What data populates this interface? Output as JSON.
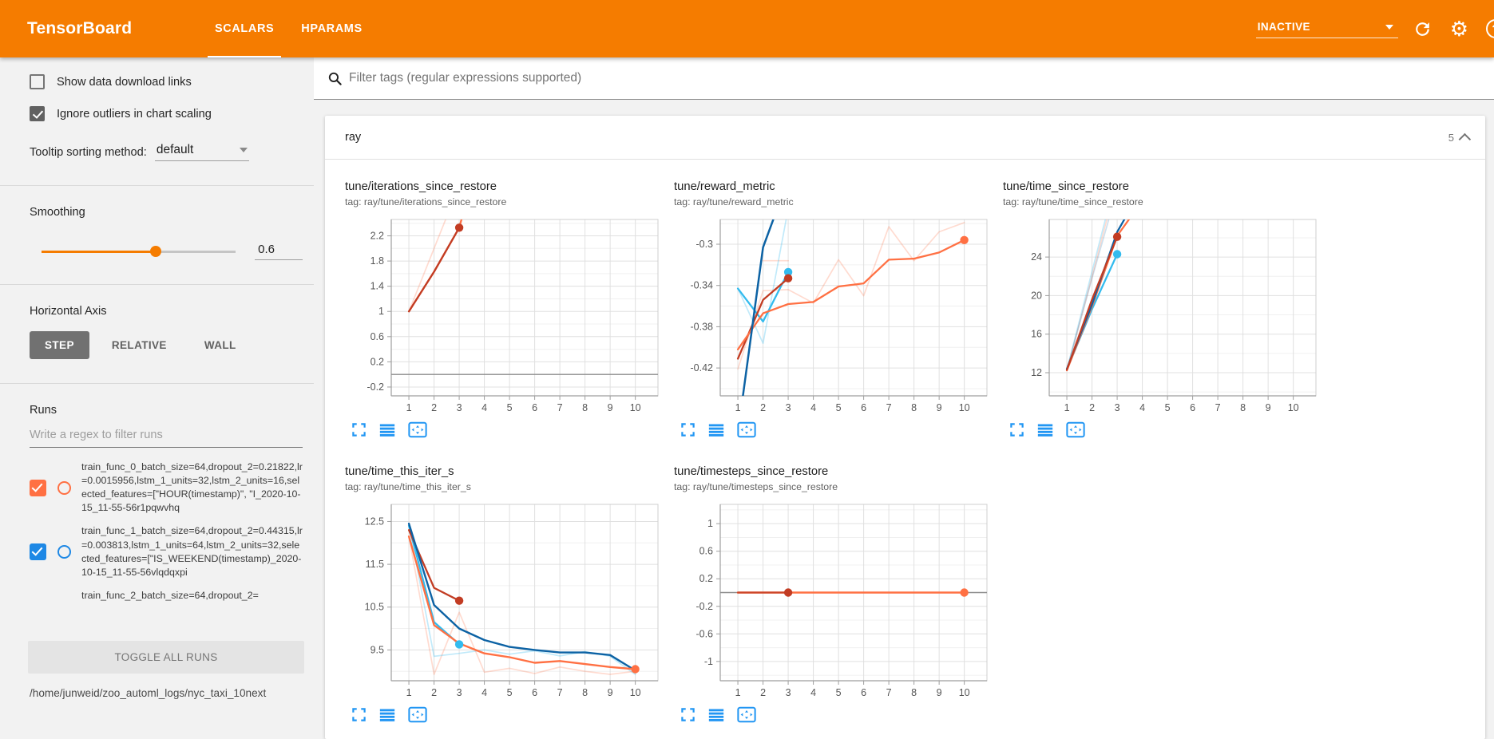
{
  "header": {
    "app_title": "TensorBoard",
    "tabs": [
      {
        "label": "SCALARS"
      },
      {
        "label": "HPARAMS"
      }
    ],
    "active_tab": "SCALARS",
    "status_dropdown": "INACTIVE",
    "help_glyph": "?",
    "bg_color": "#f57c00"
  },
  "sidebar": {
    "show_download": {
      "label": "Show data download links",
      "checked": false
    },
    "ignore_outliers": {
      "label": "Ignore outliers in chart scaling",
      "checked": true
    },
    "tooltip_sorting": {
      "label": "Tooltip sorting method:",
      "value": "default"
    },
    "smoothing": {
      "label": "Smoothing",
      "value": "0.6",
      "percent": 59
    },
    "horizontal_axis": {
      "label": "Horizontal Axis",
      "options": [
        "STEP",
        "RELATIVE",
        "WALL"
      ],
      "active": "STEP"
    },
    "runs": {
      "label": "Runs",
      "filter_placeholder": "Write a regex to filter runs",
      "items": [
        {
          "color": "#ff7043",
          "checked": true,
          "partial": false,
          "name": "train_func_0_batch_size=64,dropout_2=0.21822,lr=0.0015956,lstm_1_units=32,lstm_2_units=16,selected_features=[\"HOUR(timestamp)\", \"I_2020-10-15_11-55-56r1pqwvhq"
        },
        {
          "color": "#1e88e5",
          "checked": true,
          "partial": false,
          "name": "train_func_1_batch_size=64,dropout_2=0.44315,lr=0.003813,lstm_1_units=64,lstm_2_units=32,selected_features=[\"IS_WEEKEND(timestamp)_2020-10-15_11-55-56vlqdqxpi"
        },
        {
          "color": "#9e9e9e",
          "checked": false,
          "partial": true,
          "name": "train_func_2_batch_size=64,dropout_2="
        }
      ],
      "toggle_all": "TOGGLE ALL RUNS",
      "log_dir": "/home/junweid/zoo_automl_logs/nyc_taxi_10next"
    }
  },
  "main": {
    "tag_filter_placeholder": "Filter tags (regular expressions supported)",
    "group": {
      "name": "ray",
      "count": "5"
    }
  },
  "chart_data": [
    {
      "type": "line",
      "title": "tune/iterations_since_restore",
      "tag": "tag: ray/tune/iterations_since_restore",
      "xlim": [
        0.3,
        10.9
      ],
      "ylim": [
        -0.34,
        2.46
      ],
      "xticks": [
        1,
        2,
        3,
        4,
        5,
        6,
        7,
        8,
        9,
        10
      ],
      "yticks": [
        -0.2,
        0.2,
        0.6,
        1,
        1.4,
        1.8,
        2.2
      ],
      "zero_line": true,
      "series": [
        {
          "name": "run0-unsmoothed",
          "color": "#ff7043",
          "opacity": 0.25,
          "width": 1.7,
          "points": [
            [
              1,
              1
            ],
            [
              2,
              2
            ],
            [
              3,
              3
            ]
          ]
        },
        {
          "name": "run0-smoothed",
          "color": "#ff7043",
          "opacity": 1,
          "width": 2.3,
          "points": [
            [
              1,
              1
            ],
            [
              2,
              1.63
            ],
            [
              3,
              2.33
            ],
            [
              3.6,
              3.2
            ]
          ]
        },
        {
          "name": "run2-smoothed",
          "color": "#c23c23",
          "opacity": 1,
          "width": 2.3,
          "points": [
            [
              1,
              1
            ],
            [
              2,
              1.63
            ],
            [
              3,
              2.33
            ]
          ]
        }
      ],
      "dots": [
        {
          "x": 3,
          "y": 2.33,
          "color": "#c23c23"
        }
      ]
    },
    {
      "type": "line",
      "title": "tune/reward_metric",
      "tag": "tag: ray/tune/reward_metric",
      "xlim": [
        0.3,
        10.9
      ],
      "ylim": [
        -0.447,
        -0.276
      ],
      "xticks": [
        1,
        2,
        3,
        4,
        5,
        6,
        7,
        8,
        9,
        10
      ],
      "yticks": [
        -0.42,
        -0.38,
        -0.34,
        -0.3
      ],
      "zero_line": false,
      "series": [
        {
          "name": "run0-unsmoothed",
          "color": "#ff7043",
          "opacity": 0.25,
          "width": 1.7,
          "points": [
            [
              1,
              -0.421
            ],
            [
              2,
              -0.345
            ],
            [
              3,
              -0.344
            ],
            [
              4,
              -0.357
            ],
            [
              5,
              -0.315
            ],
            [
              6,
              -0.35
            ],
            [
              7,
              -0.283
            ],
            [
              8,
              -0.316
            ],
            [
              9,
              -0.288
            ],
            [
              10,
              -0.279
            ]
          ]
        },
        {
          "name": "run0-unsmoothed-b",
          "color": "#ff7043",
          "opacity": 0.25,
          "width": 1.7,
          "points": [
            [
              2,
              -0.316
            ],
            [
              3,
              -0.316
            ]
          ]
        },
        {
          "name": "run3-unsmoothed",
          "color": "#33bbee",
          "opacity": 0.3,
          "width": 1.7,
          "points": [
            [
              1,
              -0.343
            ],
            [
              2,
              -0.396
            ],
            [
              2.95,
              -0.272
            ]
          ]
        },
        {
          "name": "run3-smoothed",
          "color": "#33bbee",
          "opacity": 1,
          "width": 2.3,
          "points": [
            [
              1,
              -0.343
            ],
            [
              2,
              -0.375
            ],
            [
              3,
              -0.327
            ]
          ]
        },
        {
          "name": "run2-smoothed",
          "color": "#c23c23",
          "opacity": 1,
          "width": 2.3,
          "points": [
            [
              1,
              -0.411
            ],
            [
              2,
              -0.354
            ],
            [
              3,
              -0.333
            ]
          ]
        },
        {
          "name": "run0-smoothed",
          "color": "#ff7043",
          "opacity": 1,
          "width": 2.3,
          "points": [
            [
              1,
              -0.402
            ],
            [
              2,
              -0.367
            ],
            [
              3,
              -0.358
            ],
            [
              4,
              -0.356
            ],
            [
              5,
              -0.341
            ],
            [
              6,
              -0.338
            ],
            [
              7,
              -0.315
            ],
            [
              8,
              -0.314
            ],
            [
              9,
              -0.308
            ],
            [
              10,
              -0.296
            ]
          ]
        },
        {
          "name": "run1-smoothed",
          "color": "#0c62a4",
          "opacity": 1,
          "width": 2.5,
          "points": [
            [
              1.2,
              -0.447
            ],
            [
              2,
              -0.303
            ],
            [
              2.5,
              -0.27
            ]
          ]
        }
      ],
      "dots": [
        {
          "x": 3,
          "y": -0.327,
          "color": "#33bbee"
        },
        {
          "x": 3,
          "y": -0.333,
          "color": "#c23c23"
        },
        {
          "x": 10,
          "y": -0.296,
          "color": "#ff7043"
        }
      ]
    },
    {
      "type": "line",
      "title": "tune/time_since_restore",
      "tag": "tag: ray/tune/time_since_restore",
      "xlim": [
        0.3,
        10.9
      ],
      "ylim": [
        9.6,
        27.9
      ],
      "xticks": [
        1,
        2,
        3,
        4,
        5,
        6,
        7,
        8,
        9,
        10
      ],
      "yticks": [
        12,
        16,
        20,
        24
      ],
      "zero_line": false,
      "series": [
        {
          "name": "run0-unsmoothed",
          "color": "#ff7043",
          "opacity": 0.25,
          "width": 1.7,
          "points": [
            [
              1,
              12.2
            ],
            [
              2,
              22.0
            ],
            [
              2.62,
              28.2
            ]
          ]
        },
        {
          "name": "run3-unsmoothed",
          "color": "#33bbee",
          "opacity": 0.3,
          "width": 1.7,
          "points": [
            [
              1,
              12.3
            ],
            [
              2,
              22.5
            ],
            [
              2.56,
              28.2
            ]
          ]
        },
        {
          "name": "run1-unsmoothed",
          "color": "#0c62a4",
          "opacity": 0.2,
          "width": 1.7,
          "points": [
            [
              1,
              12.3
            ],
            [
              2,
              21.8
            ],
            [
              2.7,
              28.2
            ]
          ]
        },
        {
          "name": "run3-smoothed",
          "color": "#33bbee",
          "opacity": 1,
          "width": 2.3,
          "points": [
            [
              1,
              12.35
            ],
            [
              2,
              18.6
            ],
            [
              3,
              24.3
            ]
          ]
        },
        {
          "name": "run0-smoothed",
          "color": "#ff7043",
          "opacity": 1,
          "width": 2.3,
          "points": [
            [
              1,
              12.25
            ],
            [
              2,
              18.9
            ],
            [
              3,
              26.2
            ],
            [
              3.55,
              28.2
            ]
          ]
        },
        {
          "name": "run1-smoothed",
          "color": "#0c62a4",
          "opacity": 1,
          "width": 2.3,
          "points": [
            [
              1,
              12.4
            ],
            [
              2,
              19.1
            ],
            [
              3,
              26.6
            ],
            [
              3.35,
              28.2
            ]
          ]
        },
        {
          "name": "run2-smoothed",
          "color": "#c23c23",
          "opacity": 1,
          "width": 2.3,
          "points": [
            [
              1,
              12.3
            ],
            [
              2,
              19.6
            ],
            [
              3,
              26.1
            ]
          ]
        }
      ],
      "dots": [
        {
          "x": 3,
          "y": 26.1,
          "color": "#c23c23"
        },
        {
          "x": 3,
          "y": 24.3,
          "color": "#33bbee"
        }
      ]
    },
    {
      "type": "line",
      "title": "tune/time_this_iter_s",
      "tag": "tag: ray/tune/time_this_iter_s",
      "xlim": [
        0.3,
        10.9
      ],
      "ylim": [
        8.78,
        12.9
      ],
      "xticks": [
        1,
        2,
        3,
        4,
        5,
        6,
        7,
        8,
        9,
        10
      ],
      "yticks": [
        9.5,
        10.5,
        11.5,
        12.5
      ],
      "zero_line": false,
      "series": [
        {
          "name": "run0-unsmoothed",
          "color": "#ff7043",
          "opacity": 0.25,
          "width": 1.7,
          "points": [
            [
              1,
              12.15
            ],
            [
              2,
              8.93
            ],
            [
              3,
              10.38
            ],
            [
              4,
              8.98
            ],
            [
              5,
              9.07
            ],
            [
              6,
              8.95
            ],
            [
              7,
              9.1
            ],
            [
              8,
              9.0
            ],
            [
              9,
              8.93
            ],
            [
              10,
              9.0
            ]
          ]
        },
        {
          "name": "run1-unsmoothed",
          "color": "#33bbee",
          "opacity": 0.3,
          "width": 1.7,
          "points": [
            [
              1,
              12.42
            ],
            [
              2,
              9.35
            ],
            [
              3,
              9.42
            ],
            [
              4,
              9.5
            ],
            [
              5,
              9.4
            ],
            [
              6,
              9.48
            ],
            [
              7,
              9.36
            ],
            [
              8,
              9.46
            ],
            [
              9,
              9.35
            ],
            [
              10,
              8.93
            ]
          ]
        },
        {
          "name": "run3-smoothed",
          "color": "#33bbee",
          "opacity": 1,
          "width": 2.3,
          "points": [
            [
              1,
              12.4
            ],
            [
              2,
              10.15
            ],
            [
              3,
              9.63
            ]
          ]
        },
        {
          "name": "run2-smoothed",
          "color": "#c23c23",
          "opacity": 1,
          "width": 2.3,
          "points": [
            [
              1,
              12.3
            ],
            [
              2,
              10.95
            ],
            [
              3,
              10.65
            ]
          ]
        },
        {
          "name": "run1-smoothed",
          "color": "#0c62a4",
          "opacity": 1,
          "width": 2.4,
          "points": [
            [
              1,
              12.45
            ],
            [
              2,
              10.55
            ],
            [
              3,
              10.0
            ],
            [
              4,
              9.73
            ],
            [
              5,
              9.57
            ],
            [
              6,
              9.5
            ],
            [
              7,
              9.44
            ],
            [
              8,
              9.44
            ],
            [
              9,
              9.38
            ],
            [
              10,
              9.02
            ]
          ]
        },
        {
          "name": "run0-smoothed",
          "color": "#ff7043",
          "opacity": 1,
          "width": 2.4,
          "points": [
            [
              1,
              12.15
            ],
            [
              2,
              10.08
            ],
            [
              3,
              9.65
            ],
            [
              4,
              9.42
            ],
            [
              5,
              9.33
            ],
            [
              6,
              9.2
            ],
            [
              7,
              9.24
            ],
            [
              8,
              9.17
            ],
            [
              9,
              9.1
            ],
            [
              10,
              9.05
            ]
          ]
        }
      ],
      "dots": [
        {
          "x": 3,
          "y": 10.65,
          "color": "#c23c23"
        },
        {
          "x": 3,
          "y": 9.63,
          "color": "#33bbee"
        },
        {
          "x": 10,
          "y": 9.05,
          "color": "#ff7043"
        }
      ]
    },
    {
      "type": "line",
      "title": "tune/timesteps_since_restore",
      "tag": "tag: ray/tune/timesteps_since_restore",
      "xlim": [
        0.3,
        10.9
      ],
      "ylim": [
        -1.28,
        1.28
      ],
      "xticks": [
        1,
        2,
        3,
        4,
        5,
        6,
        7,
        8,
        9,
        10
      ],
      "yticks": [
        -1,
        -0.6,
        -0.2,
        0.2,
        0.6,
        1
      ],
      "zero_line": true,
      "series": [
        {
          "name": "run0-smoothed",
          "color": "#ff7043",
          "opacity": 1,
          "width": 2.6,
          "points": [
            [
              1,
              0
            ],
            [
              10,
              0
            ]
          ]
        },
        {
          "name": "run2-smoothed",
          "color": "#c23c23",
          "opacity": 0.85,
          "width": 2.3,
          "points": [
            [
              1,
              0
            ],
            [
              3,
              0
            ]
          ]
        }
      ],
      "dots": [
        {
          "x": 3,
          "y": 0,
          "color": "#c23c23"
        },
        {
          "x": 10,
          "y": 0,
          "color": "#ff7043"
        }
      ]
    }
  ]
}
